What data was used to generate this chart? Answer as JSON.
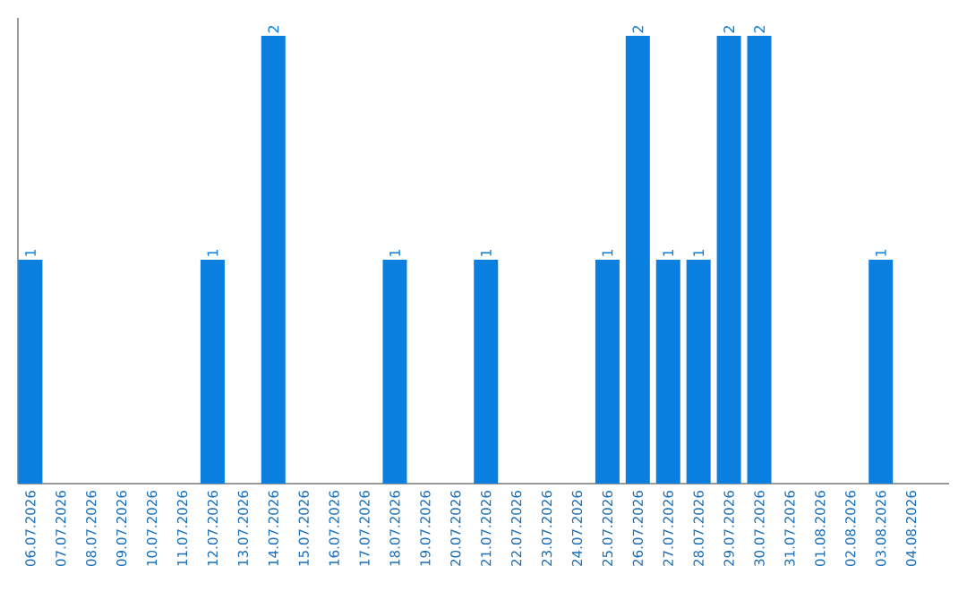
{
  "chart_data": {
    "type": "bar",
    "categories": [
      "06.07.2026",
      "07.07.2026",
      "08.07.2026",
      "09.07.2026",
      "10.07.2026",
      "11.07.2026",
      "12.07.2026",
      "13.07.2026",
      "14.07.2026",
      "15.07.2026",
      "16.07.2026",
      "17.07.2026",
      "18.07.2026",
      "19.07.2026",
      "20.07.2026",
      "21.07.2026",
      "22.07.2026",
      "23.07.2026",
      "24.07.2026",
      "25.07.2026",
      "26.07.2026",
      "27.07.2026",
      "28.07.2026",
      "29.07.2026",
      "30.07.2026",
      "31.07.2026",
      "01.08.2026",
      "02.08.2026",
      "03.08.2026",
      "04.08.2026"
    ],
    "values": [
      1,
      0,
      0,
      0,
      0,
      0,
      1,
      0,
      2,
      0,
      0,
      0,
      1,
      0,
      0,
      1,
      0,
      0,
      0,
      1,
      2,
      1,
      1,
      2,
      2,
      0,
      0,
      0,
      1,
      0
    ],
    "value_labels": [
      "1",
      null,
      null,
      null,
      null,
      null,
      "1",
      null,
      "2",
      null,
      null,
      null,
      "1",
      null,
      null,
      "1",
      null,
      null,
      null,
      "1",
      "2",
      "1",
      "1",
      "2",
      "2",
      null,
      null,
      null,
      "1",
      null
    ],
    "color": "#0a7fe0"
  }
}
